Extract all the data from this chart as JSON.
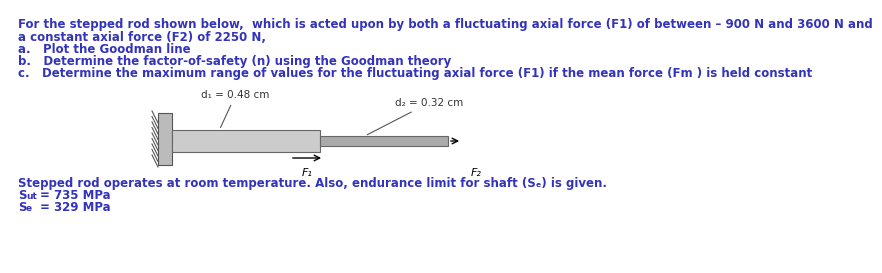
{
  "title_line1": "For the stepped rod shown below,  which is acted upon by both a fluctuating axial force (F1) of between – 900 N and 3600 N and",
  "title_line2": "a constant axial force (F2) of 2250 N,",
  "item_a": "a.   Plot the Goodman line",
  "item_b": "b.   Determine the factor-of-safety (n) using the Goodman theory",
  "item_c": "c.   Determine the maximum range of values for the fluctuating axial force (F1) if the mean force (Fm ) is held constant",
  "d1_label": "d₁ = 0.48 cm",
  "d2_label": "d₂ = 0.32 cm",
  "F1_label": "F₁",
  "F2_label": "F₂",
  "bottom_line1": "Stepped rod operates at room temperature. Also, endurance limit for shaft (Sₑ) is given.",
  "text_color": "#3333bb",
  "font_size_main": 8.5,
  "bg_color": "#ffffff",
  "wall_color": "#999999",
  "rod_large_color": "#cccccc",
  "rod_small_color": "#aaaaaa"
}
